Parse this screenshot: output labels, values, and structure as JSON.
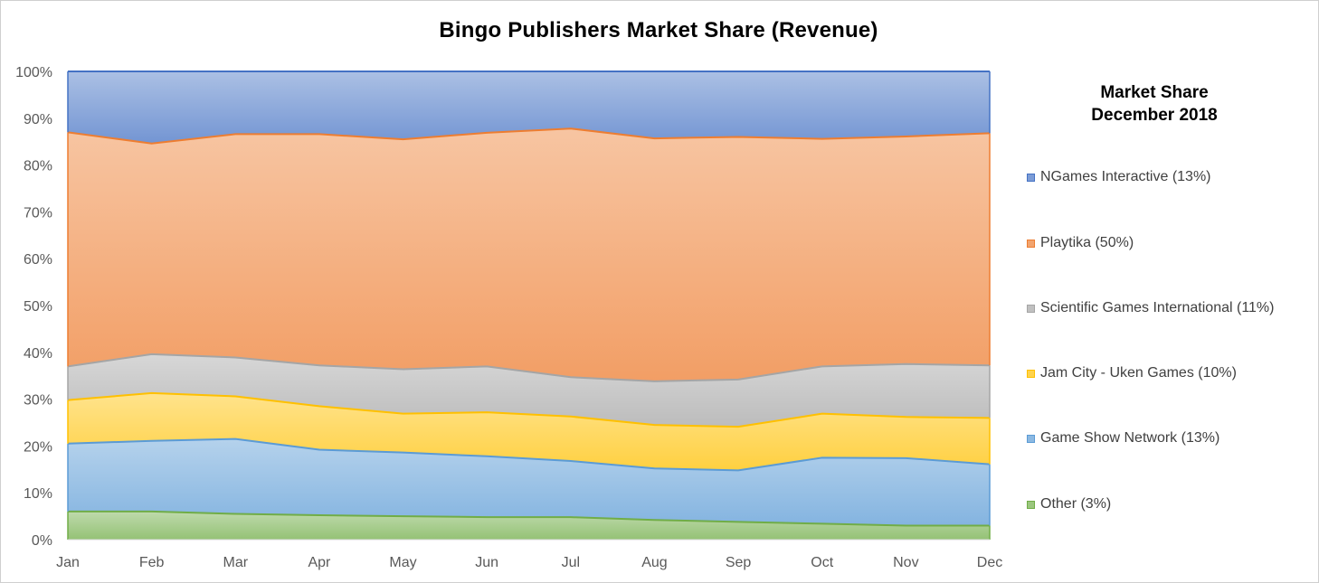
{
  "chart_data": {
    "type": "area",
    "stacked": true,
    "normalized": true,
    "title": "Bingo Publishers Market Share (Revenue)",
    "categories": [
      "Jan",
      "Feb",
      "Mar",
      "Apr",
      "May",
      "Jun",
      "Jul",
      "Aug",
      "Sep",
      "Oct",
      "Nov",
      "Dec"
    ],
    "y_ticks": [
      "0%",
      "10%",
      "20%",
      "30%",
      "40%",
      "50%",
      "60%",
      "70%",
      "80%",
      "90%",
      "100%"
    ],
    "ylim": [
      0,
      100
    ],
    "grid": false,
    "legend_title": "Market Share December 2018",
    "legend_title_lines": [
      "Market Share",
      "December 2018"
    ],
    "legend_position": "right",
    "series": [
      {
        "name": "Other (3%)",
        "color": "#70ad47",
        "values": [
          6.0,
          6.0,
          5.5,
          5.2,
          5.0,
          4.8,
          4.8,
          4.2,
          3.8,
          3.4,
          3.0,
          3.0
        ]
      },
      {
        "name": "Game Show Network (13%)",
        "color": "#5b9bd5",
        "values": [
          14.5,
          15.1,
          16.0,
          14.0,
          13.6,
          13.0,
          12.0,
          11.0,
          11.0,
          14.1,
          14.4,
          13.1
        ]
      },
      {
        "name": "Jam City - Uken Games (10%)",
        "color": "#ffc000",
        "values": [
          9.3,
          10.2,
          9.1,
          9.3,
          8.3,
          9.4,
          9.5,
          9.3,
          9.3,
          9.4,
          8.8,
          9.9
        ]
      },
      {
        "name": "Scientific Games International (11%)",
        "color": "#a5a5a5",
        "values": [
          7.2,
          8.3,
          8.3,
          8.7,
          9.5,
          9.8,
          8.4,
          9.3,
          10.1,
          10.1,
          11.3,
          11.2
        ]
      },
      {
        "name": "Playtika (50%)",
        "color": "#ed7d31",
        "values": [
          50.0,
          45.0,
          47.7,
          49.4,
          49.1,
          49.9,
          53.1,
          51.9,
          51.8,
          48.6,
          48.6,
          49.6
        ]
      },
      {
        "name": "NGames Interactive (13%)",
        "color": "#4472c4",
        "values": [
          13.0,
          15.4,
          13.4,
          13.4,
          14.5,
          13.1,
          12.2,
          14.3,
          14.0,
          14.4,
          13.9,
          13.2
        ]
      }
    ]
  }
}
